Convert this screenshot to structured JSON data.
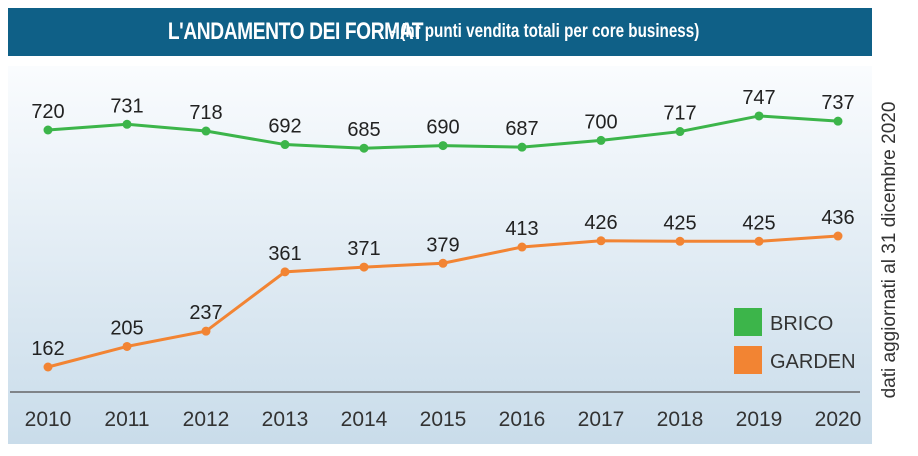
{
  "title": {
    "main": "L'ANDAMENTO DEI FORMAT",
    "sub": "- (nr punti vendita totali per core business)"
  },
  "side_note": "dati aggiornati al 31 dicembre 2020",
  "chart_data": {
    "type": "line",
    "title": "L'ANDAMENTO DEI FORMAT - (nr punti vendita totali per core business)",
    "x": [
      "2010",
      "2011",
      "2012",
      "2013",
      "2014",
      "2015",
      "2016",
      "2017",
      "2018",
      "2019",
      "2020"
    ],
    "series": [
      {
        "name": "BRICO",
        "color": "#3cb54a",
        "values": [
          720,
          731,
          718,
          692,
          685,
          690,
          687,
          700,
          717,
          747,
          737
        ]
      },
      {
        "name": "GARDEN",
        "color": "#f28433",
        "values": [
          162,
          205,
          237,
          361,
          371,
          379,
          413,
          426,
          425,
          425,
          436
        ]
      }
    ],
    "legend": "bottom-right",
    "grid": false,
    "xlabel": "",
    "ylabel": ""
  }
}
